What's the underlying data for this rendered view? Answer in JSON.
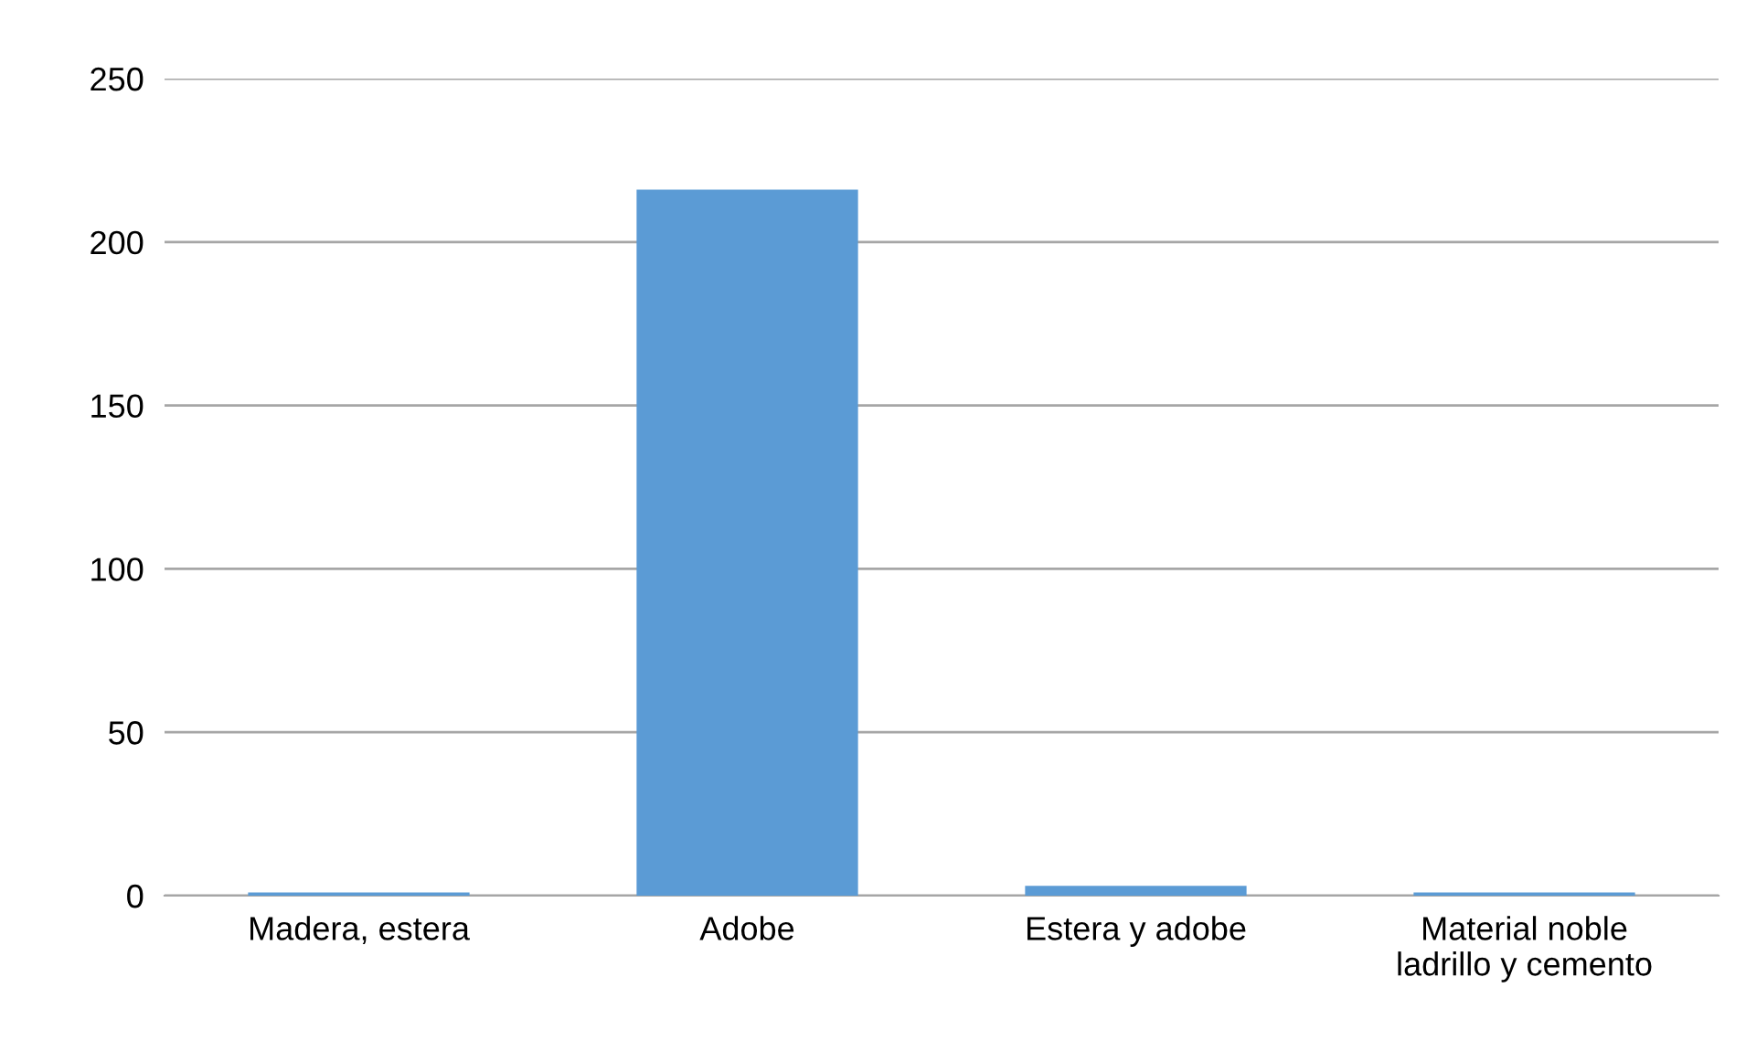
{
  "chart_data": {
    "type": "bar",
    "categories": [
      "Madera, estera",
      "Adobe",
      "Estera y adobe",
      "Material noble\nladrillo y cemento"
    ],
    "values": [
      1,
      216,
      3,
      1
    ],
    "color": "#5b9bd5",
    "ylim": [
      0,
      250
    ],
    "yticks": [
      0,
      50,
      100,
      150,
      200,
      250
    ],
    "grid": "y"
  }
}
